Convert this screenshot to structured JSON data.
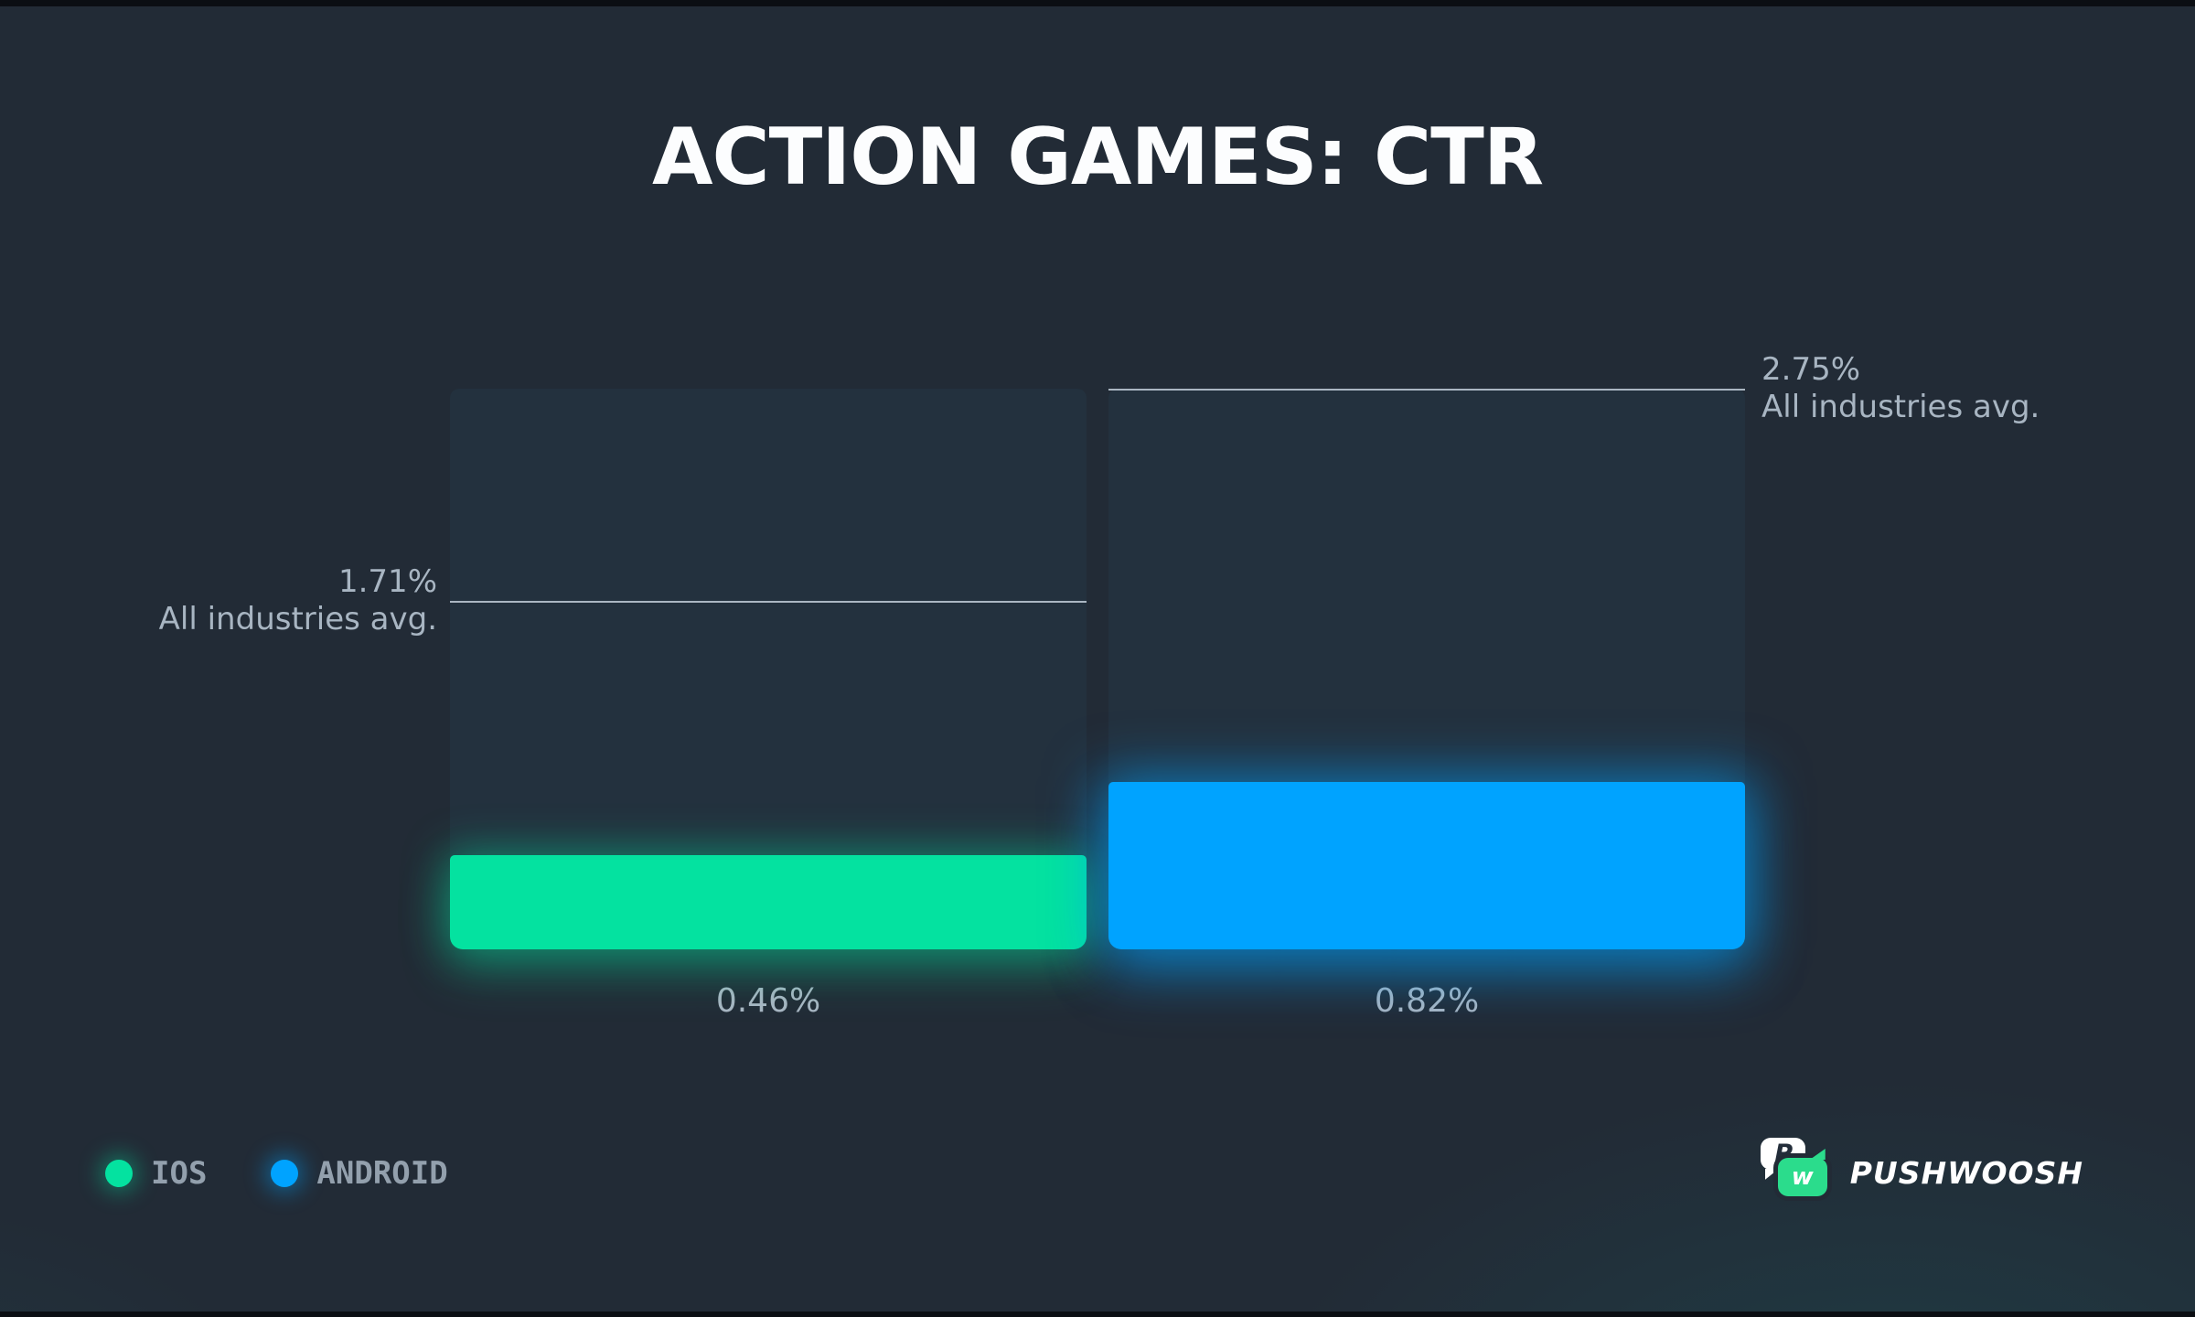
{
  "title": "ACTION GAMES: CTR",
  "chart_data": {
    "type": "bar",
    "title": "ACTION GAMES: CTR",
    "unit": "%",
    "categories": [
      "IOS",
      "ANDROID"
    ],
    "series": [
      {
        "name": "CTR",
        "values": [
          0.46,
          0.82
        ]
      }
    ],
    "axis_max": 2.75,
    "ylim": [
      0,
      2.75
    ],
    "grid": false,
    "bars": [
      {
        "category": "IOS",
        "value": 0.46,
        "value_label": "0.46%",
        "color": "#04E2A0",
        "benchmark": 1.71,
        "benchmark_label": "1.71%",
        "benchmark_sublabel": "All industries avg."
      },
      {
        "category": "ANDROID",
        "value": 0.82,
        "value_label": "0.82%",
        "color": "#00A3FF",
        "benchmark": 2.75,
        "benchmark_label": "2.75%",
        "benchmark_sublabel": "All industries avg."
      }
    ],
    "legend_position": "bottom-left"
  },
  "legend": {
    "items": [
      {
        "label": "IOS",
        "color": "#04E2A0"
      },
      {
        "label": "ANDROID",
        "color": "#00A3FF"
      }
    ]
  },
  "footer": {
    "brand": "PUSHWOOSH",
    "logo_letters": [
      "P",
      "w"
    ]
  },
  "colors": {
    "background": "#222B36",
    "panel": "#23313E",
    "title_text": "#FCFDFE",
    "label_text": "#A8B5C2",
    "legend_text": "#93A0AD",
    "benchmark_line": "#B9C5D0",
    "ios_bar": "#04E2A0",
    "android_bar": "#00A3FF",
    "logo_green": "#2BDC8C"
  }
}
